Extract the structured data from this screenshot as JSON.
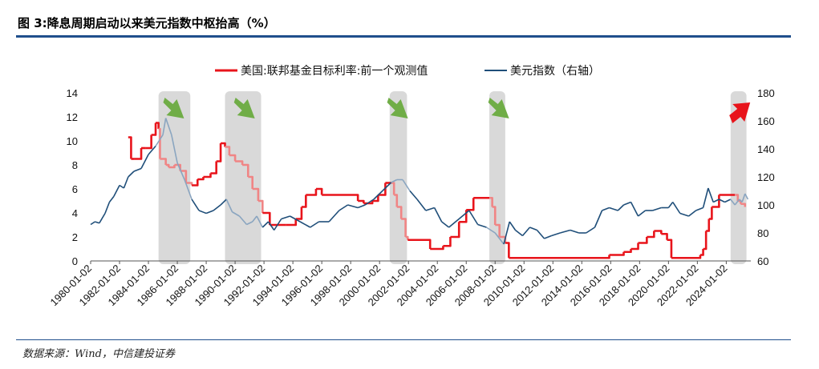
{
  "figure": {
    "title": "图 3:降息周期启动以来美元指数中枢抬高（%）",
    "source": "数据来源：Wind，中信建投证券"
  },
  "colors": {
    "fed_rate": "#e8141b",
    "fed_rate_faded": "#f08585",
    "dxy": "#1f4e79",
    "dxy_faded": "#8aa5c0",
    "shade": "#d9d9d9",
    "down_arrow": "#70ad47",
    "up_arrow": "#e8141b",
    "rule": "#1f4e8c"
  },
  "chart_data": {
    "type": "line",
    "title": "",
    "legend_position": "top",
    "x_ticks": [
      "1980-01-02",
      "1982-01-02",
      "1984-01-02",
      "1986-01-02",
      "1988-01-02",
      "1990-01-02",
      "1992-01-02",
      "1994-01-02",
      "1996-01-02",
      "1998-01-02",
      "2000-01-02",
      "2002-01-02",
      "2004-01-02",
      "2006-01-02",
      "2008-01-02",
      "2010-01-02",
      "2012-01-02",
      "2014-01-02",
      "2016-01-02",
      "2018-01-02",
      "2020-01-02",
      "2022-01-02",
      "2024-01-02"
    ],
    "xlim": [
      1980.0,
      2025.7
    ],
    "y_left": {
      "lim": [
        0,
        14
      ],
      "ticks": [
        "0",
        "2",
        "4",
        "6",
        "8",
        "10",
        "12",
        "14"
      ]
    },
    "y_right": {
      "lim": [
        60,
        180
      ],
      "ticks": [
        "60",
        "80",
        "100",
        "120",
        "140",
        "160",
        "180"
      ]
    },
    "cut_periods": [
      [
        1984.7,
        1986.9
      ],
      [
        1989.3,
        1991.8
      ],
      [
        2000.7,
        2001.9
      ],
      [
        2007.6,
        2008.7
      ],
      [
        2024.3,
        2025.4
      ]
    ],
    "arrows": [
      {
        "x": 1985.8,
        "direction": "down"
      },
      {
        "x": 1990.7,
        "direction": "down"
      },
      {
        "x": 2001.3,
        "direction": "down"
      },
      {
        "x": 2008.3,
        "direction": "down"
      },
      {
        "x": 2025.1,
        "direction": "up"
      }
    ],
    "series": [
      {
        "name": "美国:联邦基金目标利率:前一个观测值",
        "axis": "left",
        "step": true,
        "x": [
          1982.6,
          1982.8,
          1983.0,
          1983.5,
          1983.8,
          1984.2,
          1984.5,
          1984.7,
          1984.8,
          1985.2,
          1985.4,
          1985.8,
          1986.2,
          1986.6,
          1987.0,
          1987.4,
          1987.8,
          1988.3,
          1988.7,
          1989.0,
          1989.3,
          1989.6,
          1990.0,
          1990.5,
          1990.9,
          1991.2,
          1991.6,
          1991.9,
          1992.4,
          1993.5,
          1994.2,
          1994.6,
          1994.9,
          1995.6,
          1996.0,
          1998.5,
          1998.9,
          1999.5,
          1999.9,
          2000.4,
          2000.8,
          2001.0,
          2001.2,
          2001.5,
          2001.8,
          2001.95,
          2003.5,
          2004.4,
          2004.9,
          2005.5,
          2006.0,
          2006.5,
          2007.6,
          2007.8,
          2008.0,
          2008.3,
          2008.7,
          2008.95,
          2015.9,
          2016.9,
          2017.4,
          2017.9,
          2018.5,
          2019.0,
          2019.5,
          2019.9,
          2020.2,
          2022.2,
          2022.4,
          2022.6,
          2022.8,
          2023.0,
          2023.5,
          2024.6,
          2024.8,
          2025.0,
          2025.3
        ],
        "y": [
          10.3,
          8.5,
          8.5,
          9.4,
          9.4,
          10.5,
          11.5,
          11.0,
          8.5,
          8.0,
          7.8,
          8.0,
          7.5,
          6.5,
          6.3,
          6.8,
          7.0,
          7.3,
          8.3,
          9.8,
          9.5,
          8.8,
          8.3,
          8.0,
          7.0,
          6.0,
          5.0,
          4.0,
          3.0,
          3.0,
          3.5,
          4.5,
          5.5,
          6.0,
          5.5,
          5.0,
          4.8,
          5.0,
          5.5,
          6.5,
          6.5,
          5.5,
          4.5,
          3.5,
          2.0,
          1.75,
          1.0,
          1.25,
          2.0,
          3.25,
          4.25,
          5.25,
          5.25,
          4.5,
          3.0,
          2.0,
          1.5,
          0.25,
          0.5,
          0.75,
          1.0,
          1.5,
          2.0,
          2.5,
          2.25,
          1.75,
          0.25,
          0.5,
          1.0,
          2.5,
          3.5,
          4.5,
          5.5,
          5.5,
          5.0,
          4.75,
          4.5
        ]
      },
      {
        "name": "美元指数（右轴）",
        "axis": "right",
        "x": [
          1980.0,
          1980.3,
          1980.6,
          1981.0,
          1981.3,
          1981.6,
          1982.0,
          1982.3,
          1982.6,
          1983.0,
          1983.5,
          1984.0,
          1984.5,
          1985.0,
          1985.2,
          1985.6,
          1986.0,
          1986.5,
          1987.0,
          1987.5,
          1988.0,
          1988.5,
          1989.0,
          1989.4,
          1989.8,
          1990.3,
          1990.8,
          1991.2,
          1991.5,
          1991.9,
          1992.3,
          1992.7,
          1993.2,
          1993.8,
          1994.5,
          1995.2,
          1995.8,
          1996.5,
          1997.2,
          1997.8,
          1998.5,
          1999.0,
          1999.6,
          2000.2,
          2000.8,
          2001.2,
          2001.6,
          2002.1,
          2002.6,
          2003.2,
          2003.8,
          2004.3,
          2004.8,
          2005.5,
          2006.2,
          2006.8,
          2007.4,
          2008.0,
          2008.3,
          2008.6,
          2009.0,
          2009.4,
          2009.9,
          2010.4,
          2010.9,
          2011.4,
          2011.9,
          2012.5,
          2013.2,
          2013.8,
          2014.3,
          2014.9,
          2015.4,
          2015.9,
          2016.5,
          2016.9,
          2017.4,
          2017.9,
          2018.4,
          2018.9,
          2019.5,
          2020.0,
          2020.3,
          2020.8,
          2021.4,
          2021.9,
          2022.4,
          2022.75,
          2023.1,
          2023.5,
          2023.9,
          2024.3,
          2024.6,
          2024.9,
          2025.1,
          2025.3,
          2025.5
        ],
        "y": [
          86,
          88,
          87,
          94,
          102,
          106,
          114,
          112,
          120,
          124,
          126,
          136,
          142,
          150,
          162,
          150,
          130,
          118,
          104,
          96,
          94,
          96,
          100,
          104,
          95,
          92,
          86,
          88,
          92,
          84,
          88,
          82,
          90,
          92,
          88,
          84,
          88,
          88,
          96,
          100,
          98,
          100,
          104,
          110,
          116,
          118,
          118,
          110,
          104,
          96,
          98,
          88,
          84,
          90,
          96,
          86,
          84,
          80,
          76,
          72,
          88,
          82,
          78,
          84,
          82,
          76,
          78,
          80,
          82,
          80,
          80,
          84,
          96,
          98,
          96,
          100,
          102,
          92,
          96,
          96,
          98,
          98,
          102,
          94,
          92,
          96,
          98,
          112,
          102,
          104,
          102,
          104,
          100,
          104,
          102,
          108,
          104
        ]
      }
    ]
  }
}
